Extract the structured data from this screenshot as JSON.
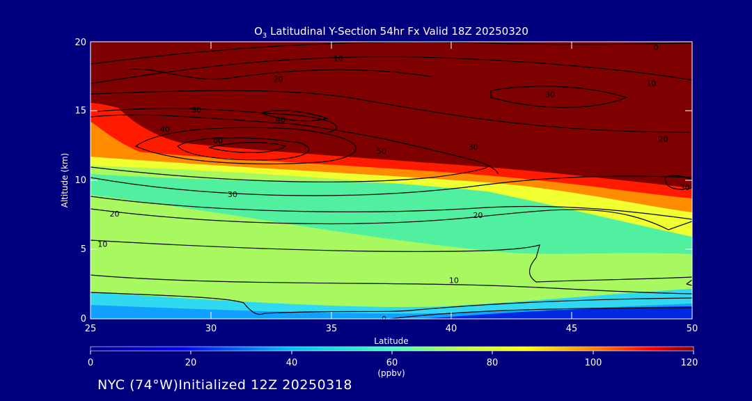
{
  "chart_data": {
    "type": "heatmap",
    "title_parts": {
      "species": "O",
      "subscript": "3",
      "rest": " Latitudinal Y-Section 54hr  Fx Valid 18Z 20250320"
    },
    "xlabel": "Latitude",
    "ylabel": "Altitude (km)",
    "xlim": [
      25,
      50
    ],
    "ylim": [
      0,
      20
    ],
    "x_ticks": [
      "25",
      "30",
      "35",
      "40",
      "45",
      "50"
    ],
    "y_ticks": [
      "0",
      "5",
      "10",
      "15",
      "20"
    ],
    "colorbar": {
      "range": [
        0,
        120
      ],
      "ticks": [
        "0",
        "20",
        "40",
        "60",
        "80",
        "100",
        "120"
      ],
      "unit": "(ppbv)"
    },
    "contour_labels": [
      {
        "text": "0",
        "lat": 48.5,
        "alt": 19.6
      },
      {
        "text": "10",
        "lat": 35.3,
        "alt": 18.8
      },
      {
        "text": "20",
        "lat": 32.8,
        "alt": 17.3
      },
      {
        "text": "10",
        "lat": 48.3,
        "alt": 17.0
      },
      {
        "text": "30",
        "lat": 44.1,
        "alt": 16.2
      },
      {
        "text": "30",
        "lat": 29.4,
        "alt": 15.1
      },
      {
        "text": "40",
        "lat": 32.9,
        "alt": 14.4
      },
      {
        "text": "40",
        "lat": 28.1,
        "alt": 13.7
      },
      {
        "text": "60",
        "lat": 30.3,
        "alt": 12.9
      },
      {
        "text": "50",
        "lat": 37.1,
        "alt": 12.1
      },
      {
        "text": "30",
        "lat": 40.9,
        "alt": 12.4
      },
      {
        "text": "20",
        "lat": 48.8,
        "alt": 13.0
      },
      {
        "text": "30",
        "lat": 49.7,
        "alt": 9.5
      },
      {
        "text": "30",
        "lat": 30.9,
        "alt": 9.0
      },
      {
        "text": "20",
        "lat": 26.0,
        "alt": 7.6
      },
      {
        "text": "20",
        "lat": 41.1,
        "alt": 7.5
      },
      {
        "text": "10",
        "lat": 25.5,
        "alt": 5.4
      },
      {
        "text": "10",
        "lat": 40.1,
        "alt": 2.8
      },
      {
        "text": "0",
        "lat": 37.2,
        "alt": 0.0
      }
    ]
  },
  "footer": "NYC (74°W)Initialized 12Z 20250318"
}
